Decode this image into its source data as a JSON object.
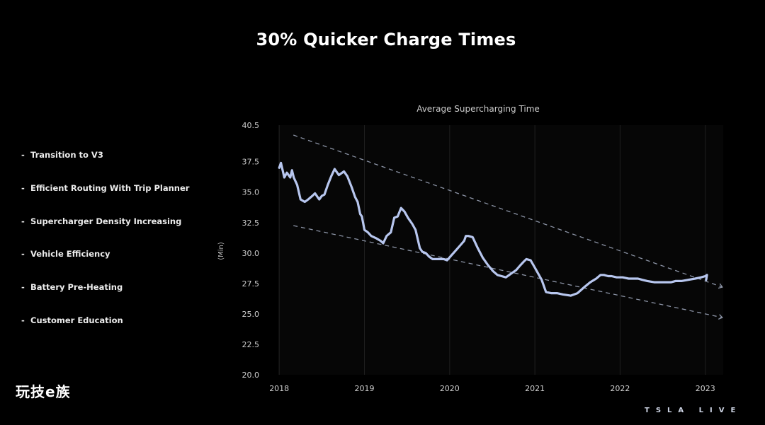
{
  "slide": {
    "title": "30% Quicker Charge Times",
    "bullets": [
      "Transition to V3",
      "Efficient Routing With Trip Planner",
      "Supercharger Density Increasing",
      "Vehicle Efficiency",
      "Battery Pre-Heating",
      "Customer Education"
    ],
    "bullet_marker": "-",
    "watermark": "玩技e族",
    "brand": "TSLA LIVE"
  },
  "colors": {
    "background": "#000000",
    "plot_background": "#060606",
    "line": "#b7c6ee",
    "trend_lines": "#8c94a6",
    "grid": "#1f1f1f",
    "text": "#ffffff",
    "tick_text": "#cfcfcf"
  },
  "chart_data": {
    "type": "line",
    "title": "Average Supercharging Time",
    "xlabel": "",
    "ylabel": "(Min)",
    "xlim": [
      2017.99,
      2023.21
    ],
    "ylim": [
      20.0,
      40.5
    ],
    "x_ticks": [
      "2018",
      "2019",
      "2020",
      "2021",
      "2022",
      "2023"
    ],
    "y_ticks": [
      "40.5",
      "37.5",
      "35.0",
      "32.5",
      "30.0",
      "27.5",
      "25.0",
      "22.5",
      "20.0"
    ],
    "grid": "vertical",
    "legend": "none",
    "series": [
      {
        "x": [
          2018.0,
          2018.02,
          2018.06,
          2018.09,
          2018.13,
          2018.15,
          2018.17,
          2018.21,
          2018.25,
          2018.3,
          2018.34,
          2018.39,
          2018.42,
          2018.45,
          2018.47,
          2018.5,
          2018.53,
          2018.57,
          2018.61,
          2018.65,
          2018.7,
          2018.76,
          2018.8,
          2018.85,
          2018.89,
          2018.92,
          2018.95,
          2018.97,
          2019.0,
          2019.04,
          2019.08,
          2019.14,
          2019.19,
          2019.22,
          2019.26,
          2019.31,
          2019.35,
          2019.39,
          2019.43,
          2019.47,
          2019.51,
          2019.56,
          2019.6,
          2019.65,
          2019.68,
          2019.72,
          2019.76,
          2019.8,
          2019.84,
          2019.89,
          2019.93,
          2019.97,
          2020.02,
          2020.07,
          2020.12,
          2020.17,
          2020.19,
          2020.22,
          2020.27,
          2020.33,
          2020.39,
          2020.45,
          2020.51,
          2020.56,
          2020.61,
          2020.66,
          2020.72,
          2020.78,
          2020.83,
          2020.87,
          2020.9,
          2020.95,
          2021.0,
          2021.04,
          2021.08,
          2021.13,
          2021.19,
          2021.26,
          2021.33,
          2021.42,
          2021.5,
          2021.58,
          2021.65,
          2021.72,
          2021.77,
          2021.81,
          2021.86,
          2021.9,
          2021.96,
          2022.03,
          2022.1,
          2022.16,
          2022.21,
          2022.26,
          2022.32,
          2022.4,
          2022.48,
          2022.55,
          2022.6,
          2022.65,
          2022.72,
          2022.8,
          2022.88,
          2022.95,
          2023.0,
          2023.02,
          2023.01
        ],
        "y": [
          37.0,
          37.4,
          36.2,
          36.6,
          36.2,
          36.8,
          36.2,
          35.6,
          34.4,
          34.2,
          34.4,
          34.7,
          34.9,
          34.6,
          34.4,
          34.7,
          34.8,
          35.6,
          36.3,
          36.9,
          36.4,
          36.7,
          36.3,
          35.4,
          34.6,
          34.2,
          33.2,
          33.0,
          31.9,
          31.7,
          31.4,
          31.2,
          31.0,
          30.8,
          31.4,
          31.7,
          32.9,
          33.0,
          33.7,
          33.4,
          32.9,
          32.4,
          31.9,
          30.4,
          30.1,
          30.0,
          29.7,
          29.5,
          29.5,
          29.5,
          29.5,
          29.4,
          29.8,
          30.2,
          30.6,
          31.0,
          31.4,
          31.4,
          31.3,
          30.4,
          29.6,
          29.0,
          28.5,
          28.2,
          28.1,
          28.0,
          28.3,
          28.6,
          29.0,
          29.3,
          29.5,
          29.4,
          28.8,
          28.3,
          27.8,
          26.8,
          26.7,
          26.7,
          26.6,
          26.5,
          26.7,
          27.2,
          27.6,
          27.9,
          28.2,
          28.2,
          28.1,
          28.1,
          28.0,
          28.0,
          27.9,
          27.9,
          27.9,
          27.8,
          27.7,
          27.6,
          27.6,
          27.6,
          27.6,
          27.7,
          27.7,
          27.8,
          27.9,
          28.0,
          28.1,
          28.2,
          27.8
        ]
      }
    ],
    "trend_lines": [
      {
        "x": [
          2018.0,
          2023.2
        ],
        "y": [
          40.1,
          27.2
        ]
      },
      {
        "x": [
          2018.0,
          2023.2
        ],
        "y": [
          32.5,
          24.7
        ]
      }
    ]
  }
}
